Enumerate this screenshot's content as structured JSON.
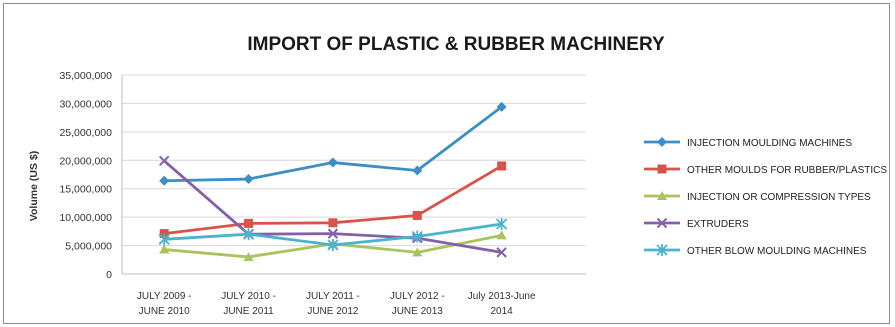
{
  "chart_data": {
    "type": "line",
    "title": "IMPORT OF PLASTIC & RUBBER MACHINERY",
    "ylabel": "Volume (US $)",
    "xlabel": "",
    "ylim": [
      0,
      35000000
    ],
    "yticks": [
      "0",
      "5,000,000",
      "10,000,000",
      "15,000,000",
      "20,000,000",
      "25,000,000",
      "30,000,000",
      "35,000,000"
    ],
    "categories": [
      [
        "JULY 2009 -",
        "JUNE 2010"
      ],
      [
        "JULY 2010 -",
        "JUNE 2011"
      ],
      [
        "JULY 2011 -",
        "JUNE 2012"
      ],
      [
        "JULY 2012 -",
        "JUNE 2013"
      ],
      [
        "July 2013-June",
        "2014"
      ]
    ],
    "grid": true,
    "legend_position": "right",
    "series": [
      {
        "name": "INJECTION MOULDING MACHINES",
        "color": "#3b8fc4",
        "marker": "diamond",
        "values": [
          16400000,
          16700000,
          19600000,
          18200000,
          29400000
        ]
      },
      {
        "name": "OTHER MOULDS FOR RUBBER/PLASTICS",
        "color": "#d9534a",
        "marker": "square",
        "values": [
          7100000,
          8900000,
          9000000,
          10300000,
          19000000
        ]
      },
      {
        "name": "INJECTION OR COMPRESSION TYPES",
        "color": "#a9c45a",
        "marker": "triangle",
        "values": [
          4300000,
          3000000,
          5300000,
          3800000,
          6800000
        ]
      },
      {
        "name": "EXTRUDERS",
        "color": "#8560a8",
        "marker": "x",
        "values": [
          19900000,
          7000000,
          7100000,
          6300000,
          3800000
        ]
      },
      {
        "name": "OTHER BLOW MOULDING MACHINES",
        "color": "#4bb3cc",
        "marker": "star",
        "values": [
          6100000,
          7000000,
          5100000,
          6600000,
          8800000
        ]
      }
    ]
  }
}
